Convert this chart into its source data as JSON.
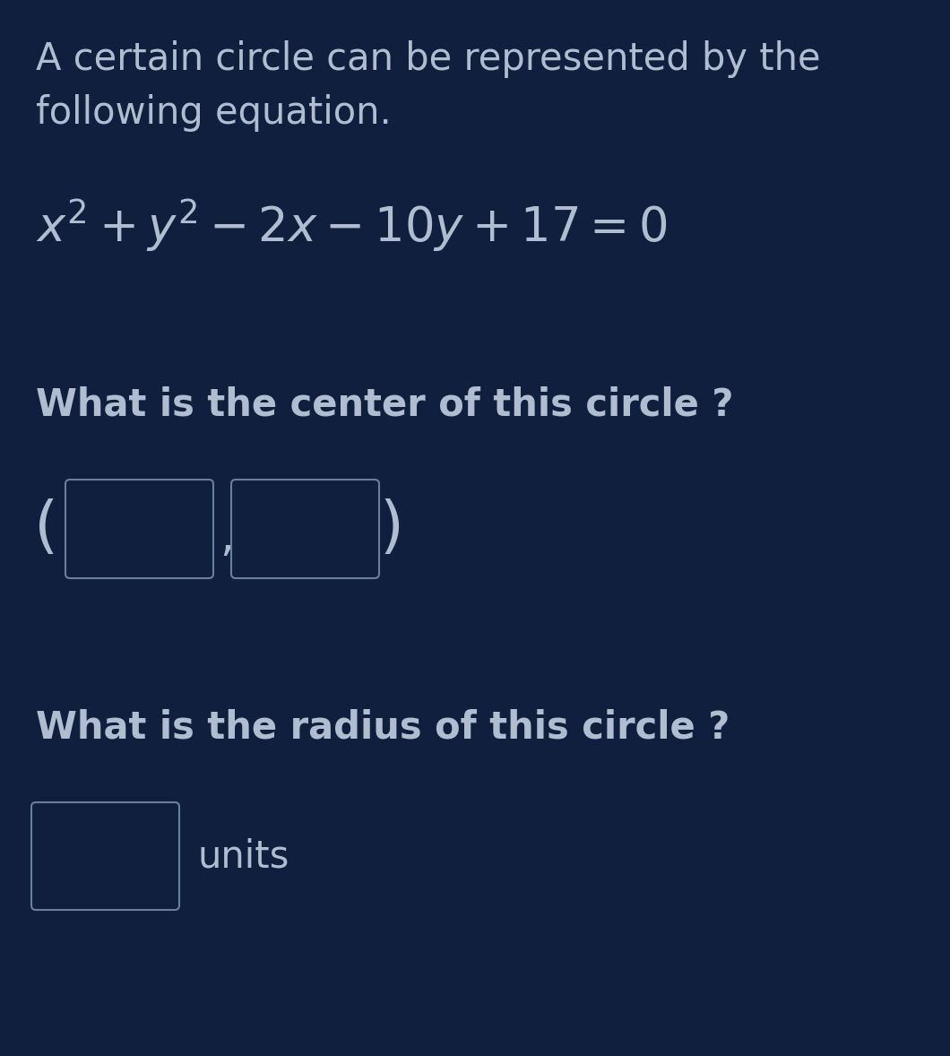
{
  "background_color": "#0f1f3d",
  "text_color": "#b0bdd0",
  "intro_text_line1": "A certain circle can be represented by the",
  "intro_text_line2": "following equation.",
  "equation": "$x^2 + y^2 - 2x - 10y + 17 = 0$",
  "question1": "What is the center of this circle ?",
  "question2": "What is the radius of this circle ?",
  "units_text": "units",
  "box_edge_color": "#6a7f9a",
  "box_fill_color": "#0f1f3d",
  "intro_fontsize": 30,
  "eq_fontsize": 38,
  "q_fontsize": 30,
  "units_fontsize": 30,
  "paren_fontsize": 50
}
